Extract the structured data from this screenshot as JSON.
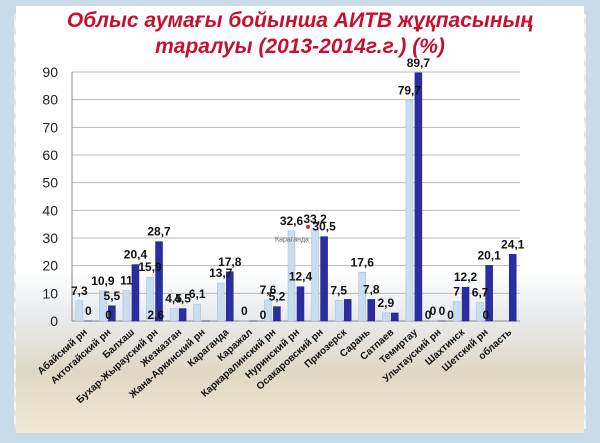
{
  "title": {
    "line1": "Облыс аумағы бойынша АИТВ жұқпасының",
    "line2": "таралуы (2013-2014г.г.) (%)"
  },
  "colors": {
    "title": "#c8102e",
    "series_2013": "#c8ddf0",
    "series_2014": "#2b2ea2",
    "grid": "#b9b9b9"
  },
  "chart_data": {
    "type": "bar",
    "title": "Облыс аумағы бойынша АИТВ жұқпасының таралуы (2013-2014г.г.) (%)",
    "xlabel": "",
    "ylabel": "",
    "ylim": [
      0,
      90
    ],
    "yticks": [
      0,
      10,
      20,
      30,
      40,
      50,
      60,
      70,
      80,
      90
    ],
    "grid": true,
    "legend": "none",
    "categories": [
      "Абайский рн",
      "Актогайский рн",
      "Балхаш",
      "Бухар-Жырауский рн",
      "Жезказган",
      "Жана-Аркинский рн",
      "Караганда",
      "Каражал",
      "Каркаралинский рн",
      "Нуринский рн",
      "Осакаровский рн",
      "Приозерск",
      "Сарань",
      "Сатпаев",
      "Темиртау",
      "Улытауский рн",
      "Шахтинск",
      "Шетский рн",
      "область"
    ],
    "series": [
      {
        "values": [
          7.3,
          10.9,
          11,
          15.9,
          4.5,
          6.1,
          13.7,
          0,
          7.6,
          32.6,
          33.2,
          7.5,
          17.6,
          2.9,
          79.7,
          0,
          7,
          6.7,
          null
        ],
        "labels": [
          "7,3",
          "10,9",
          "11",
          "15,9",
          "4,5",
          "6,1",
          "13,7",
          "0",
          "7,6",
          "32,6",
          "33,2",
          "7,5",
          "17,6",
          "2,9",
          "79,7",
          "0",
          "7",
          "6,7",
          ""
        ]
      },
      {
        "values": [
          0,
          5.5,
          20.4,
          28.7,
          4.5,
          0,
          17.8,
          0,
          5.2,
          12.4,
          30.5,
          7.8,
          7.8,
          2.9,
          89.7,
          0,
          12.2,
          20.1,
          24.1
        ],
        "labels": [
          "0",
          "5,5",
          "20,4",
          "28,7",
          "4,5",
          "",
          "17,8",
          "",
          "5,2",
          "12,4",
          "30,5",
          "",
          "7,8",
          "",
          "89,7",
          "0",
          "12,2",
          "20,1",
          "24,1"
        ]
      }
    ],
    "extra_labels": [
      "0",
      "2,6",
      "0",
      "0",
      "0",
      "0"
    ],
    "annotation": "Караганда"
  }
}
